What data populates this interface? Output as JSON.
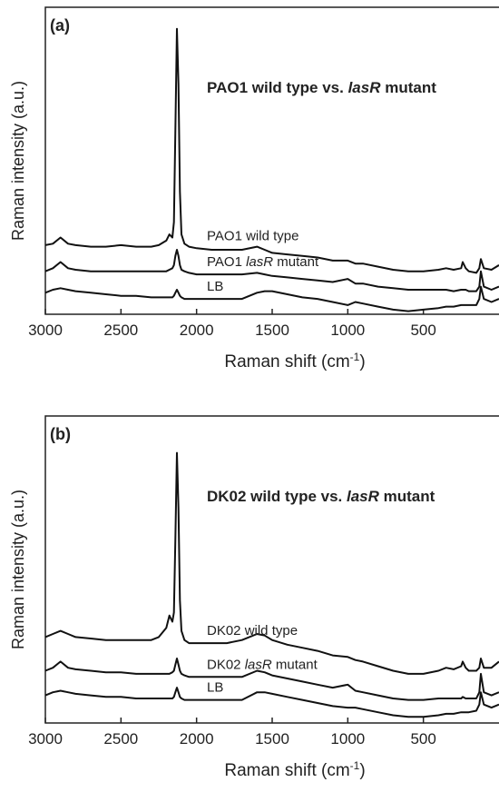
{
  "chart_data": [
    {
      "type": "line",
      "panel": "(a)",
      "title": [
        "PAO1 wild type vs. ",
        "lasR",
        " mutant"
      ],
      "xlabel": [
        "Raman shift (cm",
        "-1",
        ")"
      ],
      "ylabel": "Raman intensity (a.u.)",
      "xlim": [
        3000,
        0
      ],
      "ylim": [
        0,
        100
      ],
      "xticks": [
        3000,
        2500,
        2000,
        1500,
        1000,
        500
      ],
      "x": [
        3000,
        2950,
        2900,
        2850,
        2800,
        2700,
        2600,
        2500,
        2400,
        2300,
        2250,
        2200,
        2180,
        2160,
        2150,
        2140,
        2130,
        2120,
        2110,
        2100,
        2080,
        2050,
        2000,
        1900,
        1800,
        1700,
        1600,
        1550,
        1500,
        1400,
        1300,
        1200,
        1100,
        1000,
        950,
        900,
        800,
        700,
        600,
        500,
        400,
        350,
        300,
        250,
        240,
        220,
        200,
        150,
        130,
        120,
        100,
        50,
        0
      ],
      "series": [
        {
          "name": [
            "PAO1 wild type"
          ],
          "color": "#111111",
          "values": [
            22.5,
            23,
            25,
            23,
            22.5,
            22,
            22,
            22.5,
            22,
            22,
            22.5,
            24,
            26,
            25,
            30,
            60,
            93,
            75,
            40,
            26,
            23,
            22,
            21.5,
            21,
            21,
            21,
            22,
            21,
            20,
            19.5,
            19,
            18.5,
            17.5,
            17.5,
            16.5,
            16.5,
            15.5,
            14.5,
            14,
            14,
            14.5,
            15,
            14.5,
            15,
            17,
            15,
            14,
            13.5,
            15,
            18,
            15,
            14.5,
            16
          ]
        },
        {
          "name": [
            "PAO1 ",
            "lasR",
            " mutant"
          ],
          "color": "#111111",
          "values": [
            14,
            15,
            17,
            15,
            14.5,
            14,
            14,
            14,
            14,
            14,
            14,
            14,
            14.5,
            15,
            16,
            19,
            21,
            19,
            16,
            14.5,
            14,
            13.5,
            13,
            13,
            13,
            13,
            13.5,
            13,
            12.5,
            12,
            11.5,
            11,
            10.5,
            11.5,
            10,
            10,
            9,
            8.5,
            8,
            8,
            8,
            8,
            7.5,
            8,
            8,
            8,
            7.5,
            7.5,
            9,
            14,
            9,
            8,
            9
          ]
        },
        {
          "name": [
            "LB"
          ],
          "color": "#111111",
          "values": [
            7,
            8,
            8.5,
            8,
            7.5,
            7,
            6.5,
            6,
            6,
            5.5,
            5.5,
            5.5,
            5.5,
            5.5,
            6,
            7,
            8,
            7,
            6,
            5.5,
            5,
            5,
            5,
            5,
            5,
            5,
            7,
            7.5,
            7.5,
            6.5,
            5.5,
            5,
            4,
            3,
            4,
            3.5,
            2.5,
            1.5,
            1,
            1.5,
            2,
            2.5,
            2.5,
            3,
            3,
            3,
            3,
            3,
            5,
            9,
            5,
            4,
            5
          ]
        }
      ]
    },
    {
      "type": "line",
      "panel": "(b)",
      "title": [
        "DK02 wild type vs. ",
        "lasR",
        " mutant"
      ],
      "xlabel": [
        "Raman shift (cm",
        "-1",
        ")"
      ],
      "ylabel": "Raman intensity (a.u.)",
      "xlim": [
        3000,
        0
      ],
      "ylim": [
        0,
        100
      ],
      "xticks": [
        3000,
        2500,
        2000,
        1500,
        1000,
        500
      ],
      "x": [
        3000,
        2950,
        2900,
        2850,
        2800,
        2700,
        2600,
        2500,
        2400,
        2300,
        2250,
        2200,
        2180,
        2160,
        2150,
        2140,
        2130,
        2120,
        2110,
        2100,
        2080,
        2050,
        2000,
        1900,
        1800,
        1700,
        1600,
        1550,
        1500,
        1400,
        1300,
        1200,
        1100,
        1000,
        950,
        900,
        800,
        700,
        600,
        500,
        400,
        350,
        300,
        250,
        240,
        220,
        200,
        150,
        130,
        120,
        100,
        50,
        0
      ],
      "series": [
        {
          "name": [
            "DK02 wild type"
          ],
          "color": "#111111",
          "values": [
            28,
            29,
            30,
            29,
            28,
            27.5,
            27,
            27,
            27,
            27,
            28,
            31,
            35,
            33,
            36,
            60,
            88,
            70,
            40,
            30,
            27,
            26,
            26,
            26,
            26,
            27,
            29,
            28.5,
            27,
            25.5,
            24.5,
            23.5,
            22,
            21.5,
            20.5,
            20,
            18.5,
            17,
            16,
            16,
            17,
            18,
            17.5,
            18.5,
            20,
            18,
            17,
            17,
            18,
            21,
            18,
            18,
            20
          ]
        },
        {
          "name": [
            "DK02 ",
            "lasR",
            " mutant"
          ],
          "color": "#111111",
          "values": [
            17,
            18,
            20,
            18,
            17.5,
            17,
            16.5,
            16.5,
            16,
            16,
            16,
            16,
            16,
            16.5,
            17,
            19,
            21,
            19,
            17,
            16,
            15.5,
            15,
            15,
            15,
            15,
            15,
            17,
            16.5,
            15.5,
            14.5,
            13.5,
            12.5,
            11.5,
            12.5,
            10.5,
            10,
            9,
            8,
            7.5,
            7.5,
            8,
            8,
            8,
            8,
            8.5,
            8,
            8,
            8,
            10,
            16,
            10,
            9,
            10
          ]
        },
        {
          "name": [
            "LB"
          ],
          "color": "#111111",
          "values": [
            9,
            10,
            10.5,
            10,
            9.5,
            9,
            8.5,
            8.5,
            8,
            8,
            8,
            8,
            8,
            8,
            8.5,
            10,
            11.5,
            10,
            8.5,
            8,
            7.5,
            7.5,
            7.5,
            7.5,
            7.5,
            7.5,
            10,
            10,
            9.5,
            8.5,
            7.5,
            6.5,
            5.5,
            5,
            5,
            4.5,
            3.5,
            2.5,
            2,
            2,
            2.5,
            3,
            3,
            3.5,
            3.5,
            3.5,
            3.5,
            4,
            6,
            10,
            6,
            5,
            6
          ]
        }
      ]
    }
  ]
}
